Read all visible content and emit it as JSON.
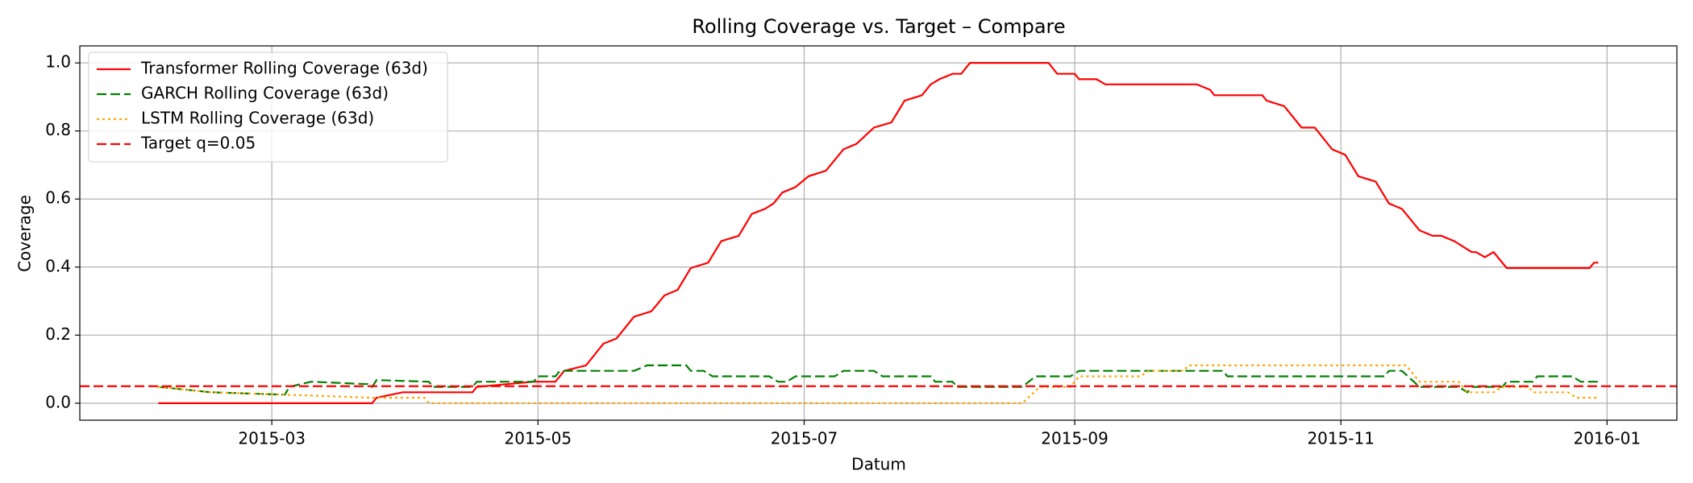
{
  "chart_data": {
    "type": "line",
    "title": "Rolling Coverage vs. Target – Compare",
    "xlabel": "Datum",
    "ylabel": "Coverage",
    "xlim": [
      "2015-01-16",
      "2016-01-17"
    ],
    "xticks": [
      "2015-03",
      "2015-05",
      "2015-07",
      "2015-09",
      "2015-11",
      "2016-01"
    ],
    "ylim": [
      -0.05,
      1.05
    ],
    "yticks": [
      {
        "value": 0,
        "label": "0.0"
      },
      0.2,
      0.4,
      0.6,
      0.8,
      {
        "value": 1,
        "label": "1.0"
      }
    ],
    "grid": true,
    "legend": "upper left",
    "series": [
      {
        "name": "Transformer Rolling Coverage (63d)",
        "color": "#ff0000",
        "dash": "solid",
        "x": [
          "2015-02-03",
          "2015-03-24",
          "2015-03-25",
          "2015-03-31",
          "2015-04-16",
          "2015-04-17",
          "2015-04-30",
          "2015-05-05",
          "2015-05-07",
          "2015-05-12",
          "2015-05-16",
          "2015-05-19",
          "2015-05-23",
          "2015-05-27",
          "2015-05-30",
          "2015-06-02",
          "2015-06-05",
          "2015-06-09",
          "2015-06-12",
          "2015-06-16",
          "2015-06-19",
          "2015-06-22",
          "2015-06-24",
          "2015-06-26",
          "2015-06-29",
          "2015-07-02",
          "2015-07-06",
          "2015-07-10",
          "2015-07-13",
          "2015-07-17",
          "2015-07-21",
          "2015-07-24",
          "2015-07-28",
          "2015-07-30",
          "2015-08-01",
          "2015-08-04",
          "2015-08-06",
          "2015-08-08",
          "2015-08-26",
          "2015-08-28",
          "2015-09-01",
          "2015-09-02",
          "2015-09-06",
          "2015-09-08",
          "2015-09-29",
          "2015-10-02",
          "2015-10-03",
          "2015-10-14",
          "2015-10-15",
          "2015-10-19",
          "2015-10-23",
          "2015-10-26",
          "2015-10-30",
          "2015-11-02",
          "2015-11-05",
          "2015-11-09",
          "2015-11-12",
          "2015-11-15",
          "2015-11-19",
          "2015-11-22",
          "2015-11-24",
          "2015-11-27",
          "2015-11-29",
          "2015-12-01",
          "2015-12-02",
          "2015-12-04",
          "2015-12-06",
          "2015-12-09",
          "2015-12-28",
          "2015-12-29",
          "2015-12-30"
        ],
        "values": [
          0,
          0,
          0.016,
          0.032,
          0.032,
          0.048,
          0.063,
          0.063,
          0.095,
          0.111,
          0.175,
          0.19,
          0.254,
          0.27,
          0.317,
          0.333,
          0.397,
          0.413,
          0.476,
          0.492,
          0.556,
          0.571,
          0.587,
          0.619,
          0.635,
          0.667,
          0.683,
          0.746,
          0.762,
          0.81,
          0.825,
          0.889,
          0.905,
          0.937,
          0.952,
          0.968,
          0.968,
          1.0,
          1.0,
          0.968,
          0.968,
          0.952,
          0.952,
          0.937,
          0.937,
          0.921,
          0.905,
          0.905,
          0.889,
          0.873,
          0.81,
          0.81,
          0.746,
          0.73,
          0.667,
          0.651,
          0.587,
          0.571,
          0.508,
          0.492,
          0.492,
          0.476,
          0.46,
          0.444,
          0.444,
          0.429,
          0.444,
          0.397,
          0.397,
          0.413,
          0.413
        ]
      },
      {
        "name": "GARCH Rolling Coverage (63d)",
        "color": "#008000",
        "dash": "dashed",
        "x": [
          "2015-02-03",
          "2015-02-15",
          "2015-03-04",
          "2015-03-05",
          "2015-03-10",
          "2015-03-23",
          "2015-03-24",
          "2015-03-25",
          "2015-04-06",
          "2015-04-07",
          "2015-04-16",
          "2015-04-17",
          "2015-04-30",
          "2015-05-01",
          "2015-05-05",
          "2015-05-06",
          "2015-05-23",
          "2015-05-26",
          "2015-06-04",
          "2015-06-05",
          "2015-06-08",
          "2015-06-10",
          "2015-06-23",
          "2015-06-25",
          "2015-06-27",
          "2015-06-29",
          "2015-07-08",
          "2015-07-10",
          "2015-07-17",
          "2015-07-19",
          "2015-07-30",
          "2015-07-31",
          "2015-08-04",
          "2015-08-05",
          "2015-08-20",
          "2015-08-23",
          "2015-08-31",
          "2015-09-02",
          "2015-10-05",
          "2015-10-06",
          "2015-11-11",
          "2015-11-12",
          "2015-11-15",
          "2015-11-19",
          "2015-11-28",
          "2015-11-30",
          "2015-12-01",
          "2015-12-08",
          "2015-12-09",
          "2015-12-15",
          "2015-12-16",
          "2015-12-24",
          "2015-12-26",
          "2015-12-30"
        ],
        "values": [
          0.048,
          0.032,
          0.025,
          0.048,
          0.063,
          0.056,
          0.048,
          0.068,
          0.063,
          0.048,
          0.048,
          0.063,
          0.063,
          0.079,
          0.079,
          0.095,
          0.095,
          0.111,
          0.111,
          0.095,
          0.095,
          0.079,
          0.079,
          0.063,
          0.063,
          0.079,
          0.079,
          0.095,
          0.095,
          0.079,
          0.079,
          0.063,
          0.063,
          0.048,
          0.048,
          0.079,
          0.079,
          0.095,
          0.095,
          0.079,
          0.079,
          0.095,
          0.095,
          0.048,
          0.048,
          0.032,
          0.048,
          0.048,
          0.063,
          0.063,
          0.079,
          0.079,
          0.063,
          0.063
        ]
      },
      {
        "name": "LSTM Rolling Coverage (63d)",
        "color": "#ffa500",
        "dash": "dotted",
        "x": [
          "2015-02-03",
          "2015-02-15",
          "2015-03-04",
          "2015-03-24",
          "2015-04-05",
          "2015-04-06",
          "2015-08-20",
          "2015-08-24",
          "2015-08-31",
          "2015-09-02",
          "2015-09-16",
          "2015-09-18",
          "2015-09-26",
          "2015-09-27",
          "2015-11-16",
          "2015-11-19",
          "2015-11-28",
          "2015-11-30",
          "2015-12-06",
          "2015-12-08",
          "2015-12-14",
          "2015-12-15",
          "2015-12-23",
          "2015-12-25",
          "2015-12-30"
        ],
        "values": [
          0.048,
          0.032,
          0.025,
          0.016,
          0.016,
          0,
          0,
          0.048,
          0.048,
          0.079,
          0.079,
          0.095,
          0.095,
          0.111,
          0.111,
          0.063,
          0.063,
          0.032,
          0.032,
          0.048,
          0.048,
          0.032,
          0.032,
          0.016,
          0.016
        ]
      }
    ],
    "target": {
      "name": "Target q=0.05",
      "value": 0.05,
      "color": "#ff0000",
      "dash": "dashed"
    }
  }
}
